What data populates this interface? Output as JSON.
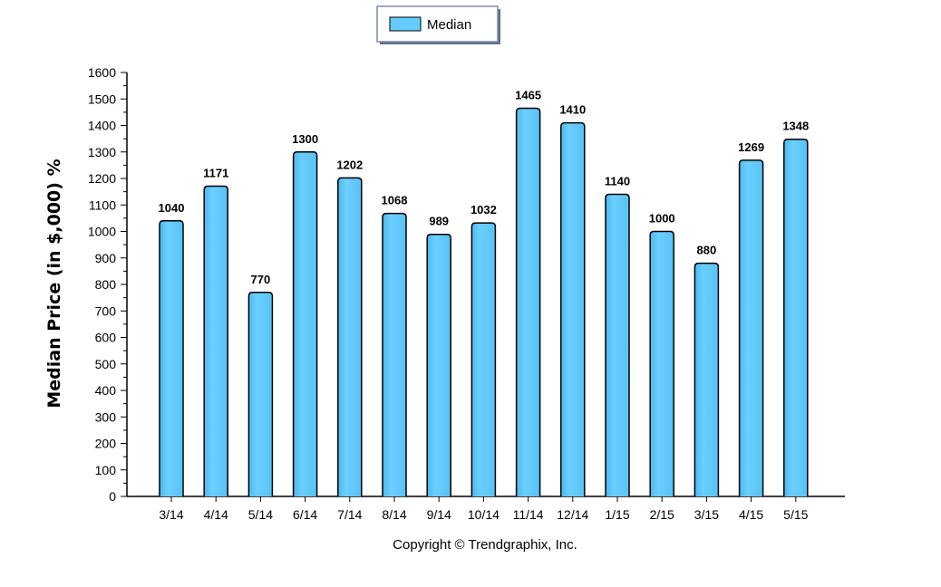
{
  "chart_data": {
    "type": "bar",
    "categories": [
      "3/14",
      "4/14",
      "5/14",
      "6/14",
      "7/14",
      "8/14",
      "9/14",
      "10/14",
      "11/14",
      "12/14",
      "1/15",
      "2/15",
      "3/15",
      "4/15",
      "5/15"
    ],
    "series": [
      {
        "name": "Median",
        "values": [
          1040,
          1171,
          770,
          1300,
          1202,
          1068,
          989,
          1032,
          1465,
          1410,
          1140,
          1000,
          880,
          1269,
          1348
        ],
        "color": "#66ccff"
      }
    ],
    "data_labels": [
      "1040",
      "1171",
      "770",
      "1300",
      "1202",
      "1068",
      "989",
      "1032",
      "1465",
      "1410",
      "1140",
      "1000",
      "880",
      "1269",
      "1348"
    ],
    "ylabel": "Median Price (in $,000) %",
    "xlabel": "",
    "ylim": [
      0,
      1600
    ],
    "yticks": [
      0,
      100,
      200,
      300,
      400,
      500,
      600,
      700,
      800,
      900,
      1000,
      1100,
      1200,
      1300,
      1400,
      1500,
      1600
    ],
    "grid": false,
    "legend_position": "top-center",
    "bar_color": "#66ccff",
    "bar_outline_color": "#000000"
  },
  "footer": {
    "copyright": "Copyright © Trendgraphix, Inc."
  }
}
